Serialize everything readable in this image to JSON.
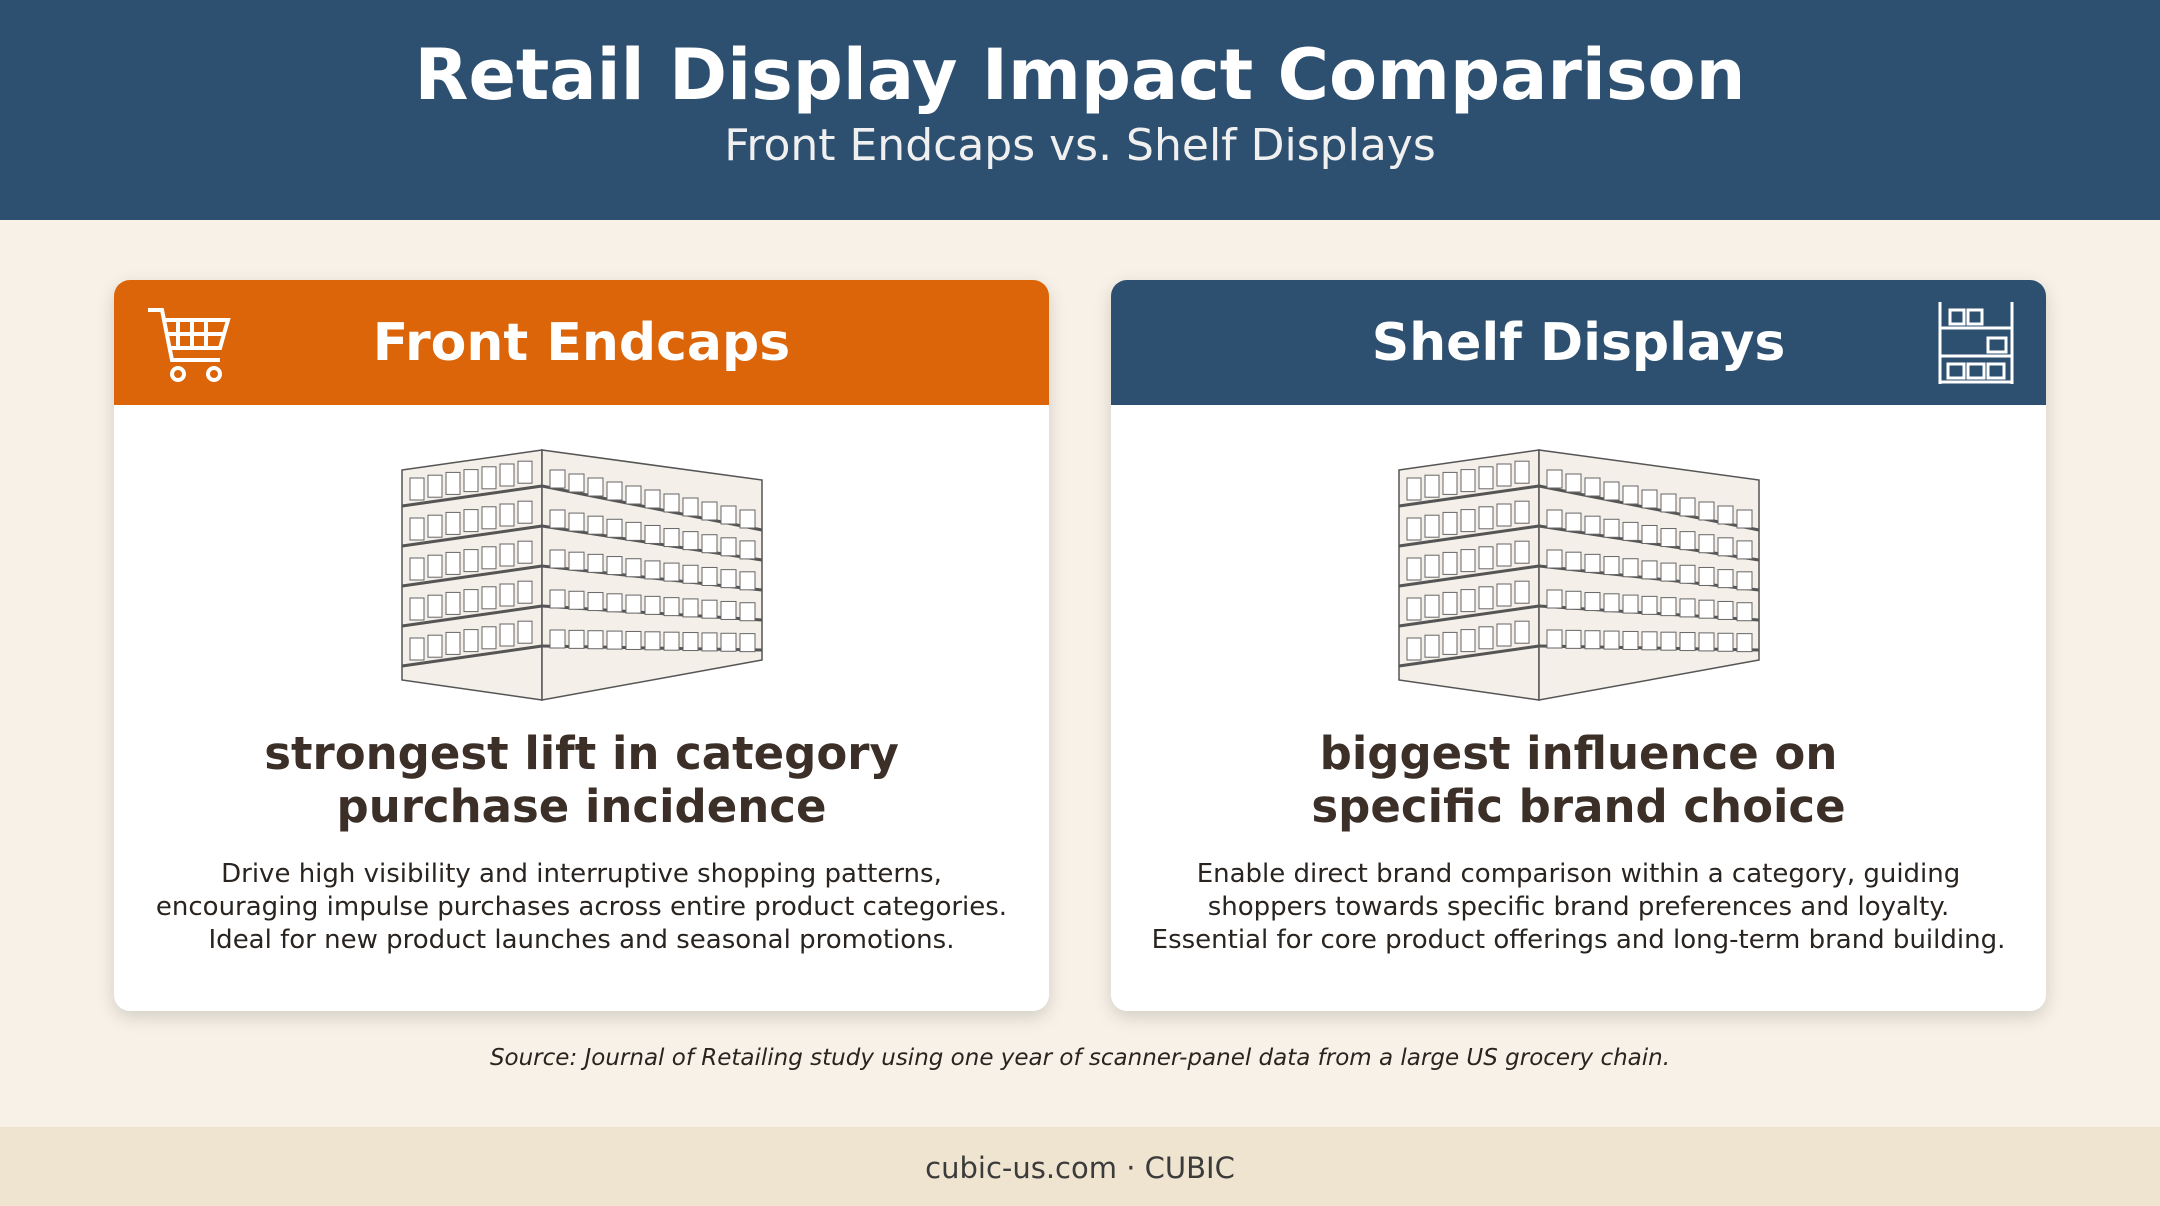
{
  "header": {
    "title": "Retail Display Impact Comparison",
    "subtitle": "Front Endcaps vs. Shelf Displays"
  },
  "cards": [
    {
      "title": "Front Endcaps",
      "headline": [
        "strongest lift in category",
        "purchase incidence"
      ],
      "body": [
        "Drive high visibility and interruptive shopping patterns,",
        "encouraging impulse purchases across entire product categories.",
        "Ideal for new product launches and seasonal promotions."
      ]
    },
    {
      "title": "Shelf Displays",
      "headline": [
        "biggest influence on",
        "specific brand choice"
      ],
      "body": [
        "Enable direct brand comparison within a category, guiding",
        "shoppers towards specific brand preferences and loyalty.",
        "Essential for core product offerings and long-term brand building."
      ]
    }
  ],
  "source": "Source: Journal of Retailing study using one year of scanner-panel data from a large US grocery chain.",
  "footer": "cubic-us.com · CUBIC"
}
